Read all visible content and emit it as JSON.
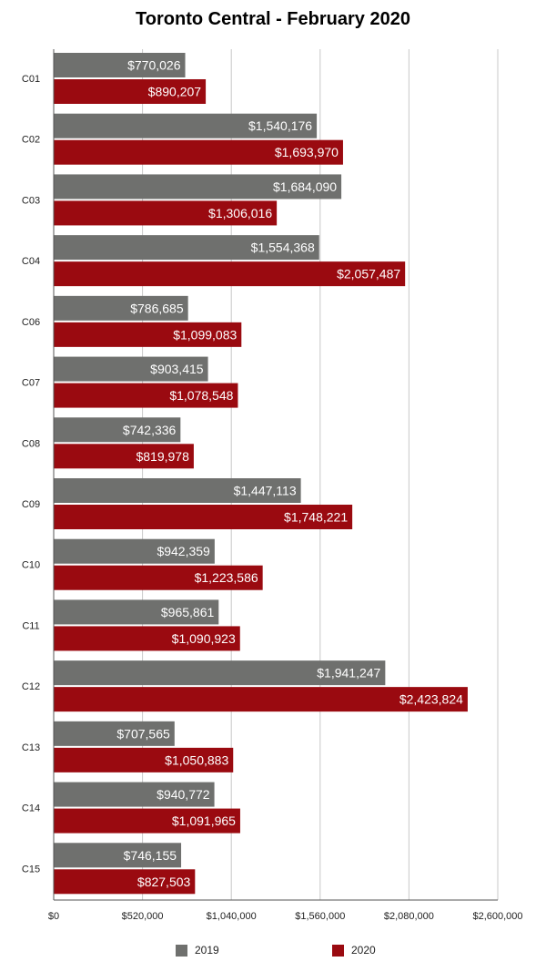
{
  "chart_data": {
    "type": "bar",
    "orientation": "horizontal",
    "title": "Toronto Central - February 2020",
    "xlabel": "",
    "ylabel": "",
    "xlim": [
      0,
      2600000
    ],
    "x_ticks": [
      0,
      520000,
      1040000,
      1560000,
      2080000,
      2600000
    ],
    "x_tick_labels": [
      "$0",
      "$520,000",
      "$1,040,000",
      "$1,560,000",
      "$2,080,000",
      "$2,600,000"
    ],
    "grid": "vertical",
    "legend_position": "bottom",
    "categories": [
      "C01",
      "C02",
      "C03",
      "C04",
      "C06",
      "C07",
      "C08",
      "C09",
      "C10",
      "C11",
      "C12",
      "C13",
      "C14",
      "C15"
    ],
    "series": [
      {
        "name": "2019",
        "color": "#6f706e",
        "values": [
          770026,
          1540176,
          1684090,
          1554368,
          786685,
          903415,
          742336,
          1447113,
          942359,
          965861,
          1941247,
          707565,
          940772,
          746155
        ],
        "labels": [
          "$770,026",
          "$1,540,176",
          "$1,684,090",
          "$1,554,368",
          "$786,685",
          "$903,415",
          "$742,336",
          "$1,447,113",
          "$942,359",
          "$965,861",
          "$1,941,247",
          "$707,565",
          "$940,772",
          "$746,155"
        ]
      },
      {
        "name": "2020",
        "color": "#9a0a10",
        "values": [
          890207,
          1693970,
          1306016,
          2057487,
          1099083,
          1078548,
          819978,
          1748221,
          1223586,
          1090923,
          2423824,
          1050883,
          1091965,
          827503
        ],
        "labels": [
          "$890,207",
          "$1,693,970",
          "$1,306,016",
          "$2,057,487",
          "$1,099,083",
          "$1,078,548",
          "$819,978",
          "$1,748,221",
          "$1,223,586",
          "$1,090,923",
          "$2,423,824",
          "$1,050,883",
          "$1,091,965",
          "$827,503"
        ]
      }
    ]
  }
}
